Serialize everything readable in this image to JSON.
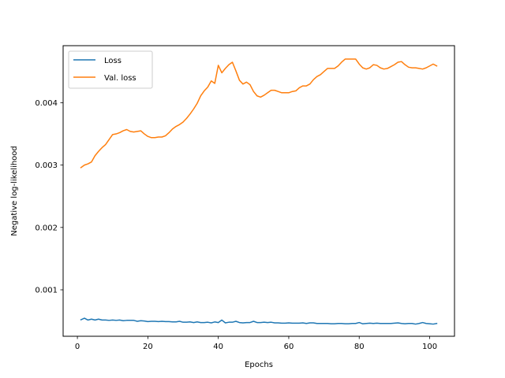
{
  "chart_data": {
    "type": "line",
    "title": "",
    "xlabel": "Epochs",
    "ylabel": "Negative log-likelihood",
    "xlim": [
      -4.05,
      107.05
    ],
    "ylim": [
      0.000255,
      0.004915
    ],
    "xticks": [
      0,
      20,
      40,
      60,
      80,
      100
    ],
    "xtick_labels": [
      "0",
      "20",
      "40",
      "60",
      "80",
      "100"
    ],
    "yticks": [
      0.001,
      0.002,
      0.003,
      0.004
    ],
    "ytick_labels": [
      "0.001",
      "0.002",
      "0.003",
      "0.004"
    ],
    "grid": false,
    "legend_position": "top-left",
    "series": [
      {
        "name": "Loss",
        "color": "#1f77b4",
        "x": [
          1,
          2,
          3,
          4,
          5,
          6,
          7,
          8,
          9,
          10,
          11,
          12,
          13,
          14,
          15,
          16,
          17,
          18,
          19,
          20,
          21,
          22,
          23,
          24,
          25,
          26,
          27,
          28,
          29,
          30,
          31,
          32,
          33,
          34,
          35,
          36,
          37,
          38,
          39,
          40,
          41,
          42,
          43,
          44,
          45,
          46,
          47,
          48,
          49,
          50,
          51,
          52,
          53,
          54,
          55,
          56,
          57,
          58,
          59,
          60,
          61,
          62,
          63,
          64,
          65,
          66,
          67,
          68,
          69,
          70,
          71,
          72,
          73,
          74,
          75,
          76,
          77,
          78,
          79,
          80,
          81,
          82,
          83,
          84,
          85,
          86,
          87,
          88,
          89,
          90,
          91,
          92,
          93,
          94,
          95,
          96,
          97,
          98,
          99,
          100,
          101,
          102
        ],
        "values": [
          0.00052,
          0.000545,
          0.000515,
          0.00053,
          0.000515,
          0.00053,
          0.000515,
          0.000515,
          0.00051,
          0.000515,
          0.00051,
          0.000515,
          0.000505,
          0.00051,
          0.00051,
          0.00051,
          0.000495,
          0.000505,
          0.0005,
          0.00049,
          0.000495,
          0.000495,
          0.00049,
          0.000495,
          0.00049,
          0.00049,
          0.000485,
          0.000485,
          0.000495,
          0.00048,
          0.00048,
          0.000485,
          0.000475,
          0.000485,
          0.000475,
          0.000475,
          0.00048,
          0.00047,
          0.000485,
          0.000475,
          0.000515,
          0.00047,
          0.00048,
          0.00048,
          0.000495,
          0.000475,
          0.00047,
          0.000475,
          0.000475,
          0.000495,
          0.000475,
          0.000475,
          0.00048,
          0.000475,
          0.00048,
          0.00047,
          0.00047,
          0.000465,
          0.000465,
          0.00047,
          0.000465,
          0.000465,
          0.000465,
          0.00047,
          0.00046,
          0.00047,
          0.00047,
          0.00046,
          0.00046,
          0.00046,
          0.00046,
          0.000455,
          0.000455,
          0.00046,
          0.00046,
          0.000455,
          0.000455,
          0.00046,
          0.00046,
          0.000475,
          0.000455,
          0.00046,
          0.000465,
          0.00046,
          0.000465,
          0.00046,
          0.00046,
          0.00046,
          0.00046,
          0.000465,
          0.00047,
          0.00046,
          0.000455,
          0.00046,
          0.00046,
          0.00045,
          0.00046,
          0.000475,
          0.00046,
          0.000455,
          0.00045,
          0.00046
        ]
      },
      {
        "name": "Val. loss",
        "color": "#ff7f0e",
        "x": [
          1,
          2,
          3,
          4,
          5,
          6,
          7,
          8,
          9,
          10,
          11,
          12,
          13,
          14,
          15,
          16,
          17,
          18,
          19,
          20,
          21,
          22,
          23,
          24,
          25,
          26,
          27,
          28,
          29,
          30,
          31,
          32,
          33,
          34,
          35,
          36,
          37,
          38,
          39,
          40,
          41,
          42,
          43,
          44,
          45,
          46,
          47,
          48,
          49,
          50,
          51,
          52,
          53,
          54,
          55,
          56,
          57,
          58,
          59,
          60,
          61,
          62,
          63,
          64,
          65,
          66,
          67,
          68,
          69,
          70,
          71,
          72,
          73,
          74,
          75,
          76,
          77,
          78,
          79,
          80,
          81,
          82,
          83,
          84,
          85,
          86,
          87,
          88,
          89,
          90,
          91,
          92,
          93,
          94,
          95,
          96,
          97,
          98,
          99,
          100,
          101,
          102
        ],
        "values": [
          0.00296,
          0.003,
          0.00302,
          0.00305,
          0.00315,
          0.00322,
          0.00328,
          0.00333,
          0.00341,
          0.00349,
          0.0035,
          0.00352,
          0.00355,
          0.00357,
          0.00354,
          0.00353,
          0.00354,
          0.00355,
          0.0035,
          0.00346,
          0.00344,
          0.00344,
          0.00345,
          0.00345,
          0.00347,
          0.00352,
          0.00358,
          0.00362,
          0.00365,
          0.00369,
          0.00375,
          0.00382,
          0.0039,
          0.00399,
          0.00411,
          0.00419,
          0.00425,
          0.00435,
          0.00431,
          0.0046,
          0.00448,
          0.00455,
          0.00461,
          0.00465,
          0.00451,
          0.00436,
          0.0043,
          0.00433,
          0.00429,
          0.00418,
          0.00411,
          0.00409,
          0.00412,
          0.00416,
          0.0042,
          0.0042,
          0.00418,
          0.00416,
          0.00416,
          0.00416,
          0.00418,
          0.00419,
          0.00424,
          0.00427,
          0.00427,
          0.0043,
          0.00437,
          0.00442,
          0.00445,
          0.0045,
          0.00455,
          0.00455,
          0.00455,
          0.00459,
          0.00465,
          0.0047,
          0.0047,
          0.0047,
          0.0047,
          0.00462,
          0.00456,
          0.00454,
          0.00456,
          0.00461,
          0.0046,
          0.00456,
          0.00454,
          0.00455,
          0.00458,
          0.00461,
          0.00465,
          0.00466,
          0.00461,
          0.00457,
          0.00456,
          0.00456,
          0.00455,
          0.00454,
          0.00456,
          0.00459,
          0.00462,
          0.00459
        ]
      }
    ]
  }
}
